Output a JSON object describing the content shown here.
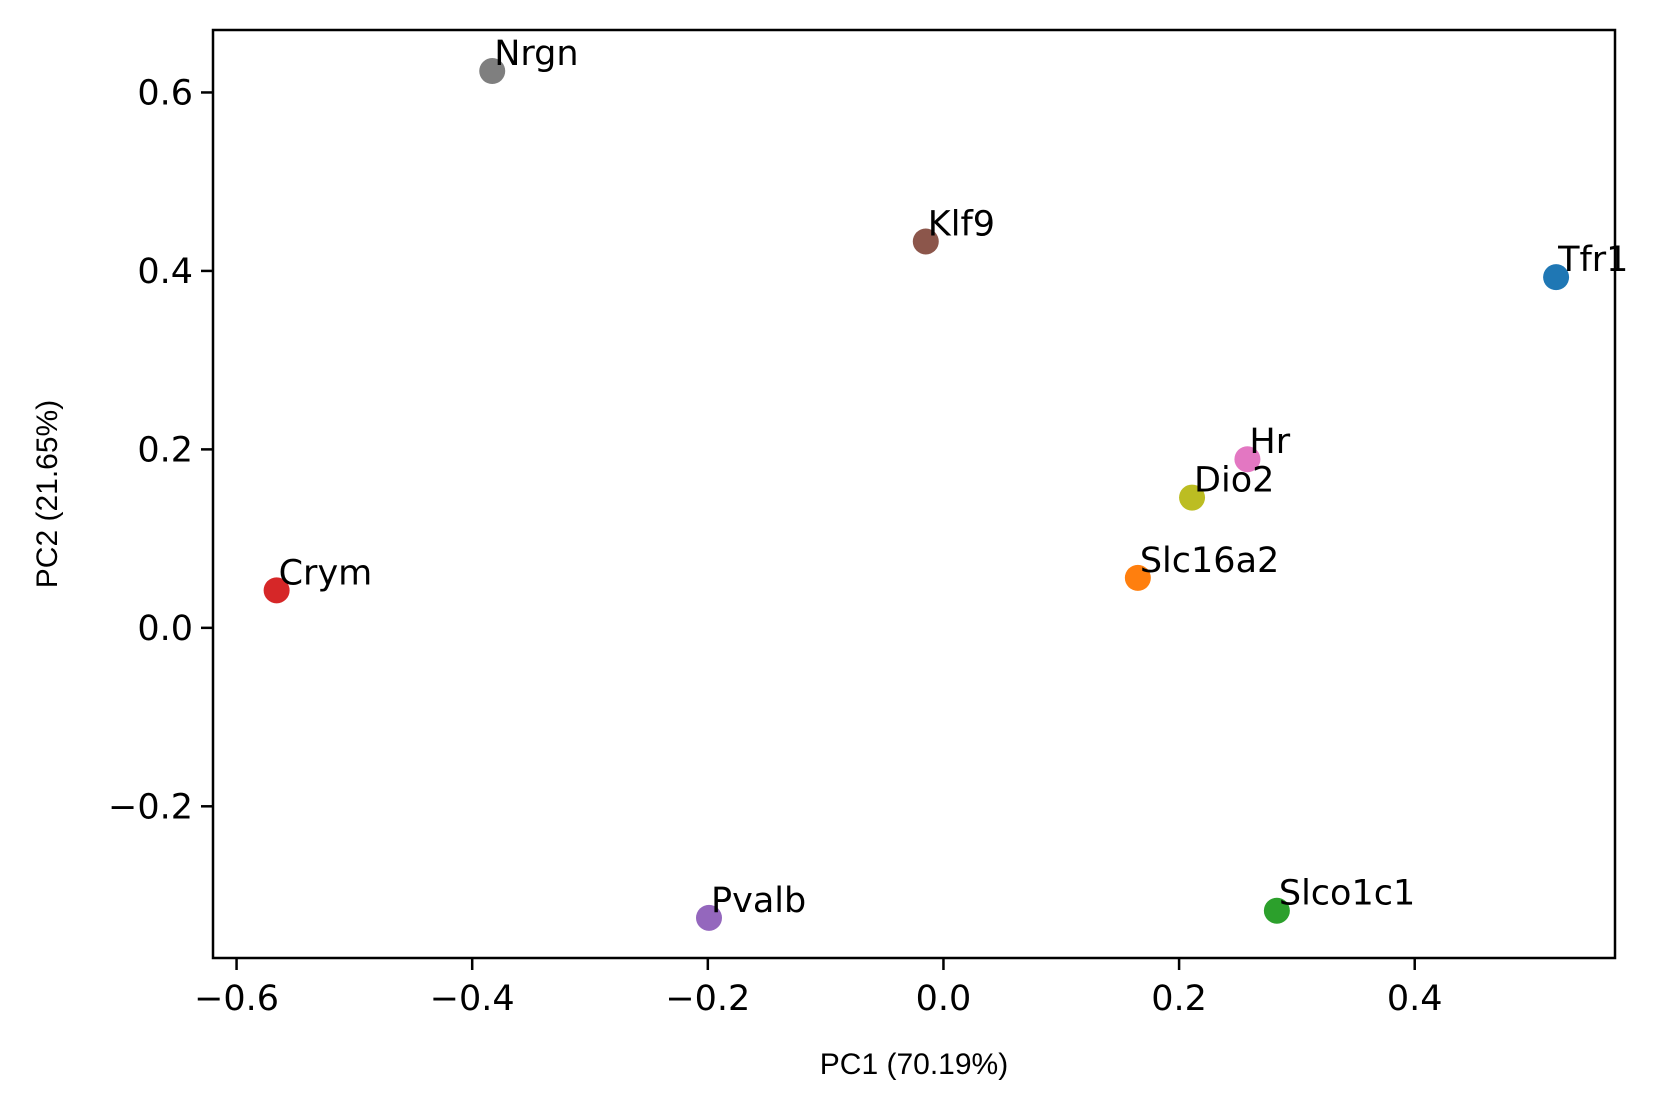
{
  "chart_data": {
    "type": "scatter",
    "title": "",
    "xlabel": "PC1 (70.19%)",
    "ylabel": "PC2 (21.65%)",
    "xlim": [
      -0.62,
      0.57
    ],
    "ylim": [
      -0.37,
      0.67
    ],
    "xticks": [
      -0.6,
      -0.4,
      -0.2,
      0.0,
      0.2,
      0.4
    ],
    "xtick_labels": [
      "−0.6",
      "−0.4",
      "−0.2",
      "0.0",
      "0.2",
      "0.4"
    ],
    "yticks": [
      -0.2,
      0.0,
      0.2,
      0.4,
      0.6
    ],
    "ytick_labels": [
      "−0.2",
      "0.0",
      "0.2",
      "0.4",
      "0.6"
    ],
    "grid": false,
    "legend": "none",
    "points": [
      {
        "label": "Tfr1",
        "x": 0.52,
        "y": 0.393,
        "color": "#1f77b4"
      },
      {
        "label": "Slc16a2",
        "x": 0.165,
        "y": 0.056,
        "color": "#ff7f0e"
      },
      {
        "label": "Slco1c1",
        "x": 0.283,
        "y": -0.317,
        "color": "#2ca02c"
      },
      {
        "label": "Crym",
        "x": -0.566,
        "y": 0.042,
        "color": "#d62728"
      },
      {
        "label": "Pvalb",
        "x": -0.199,
        "y": -0.325,
        "color": "#9467bd"
      },
      {
        "label": "Klf9",
        "x": -0.015,
        "y": 0.433,
        "color": "#8c564b"
      },
      {
        "label": "Hr",
        "x": 0.258,
        "y": 0.189,
        "color": "#e377c2"
      },
      {
        "label": "Nrgn",
        "x": -0.383,
        "y": 0.624,
        "color": "#7f7f7f"
      },
      {
        "label": "Dio2",
        "x": 0.211,
        "y": 0.146,
        "color": "#bcbd22"
      }
    ]
  }
}
